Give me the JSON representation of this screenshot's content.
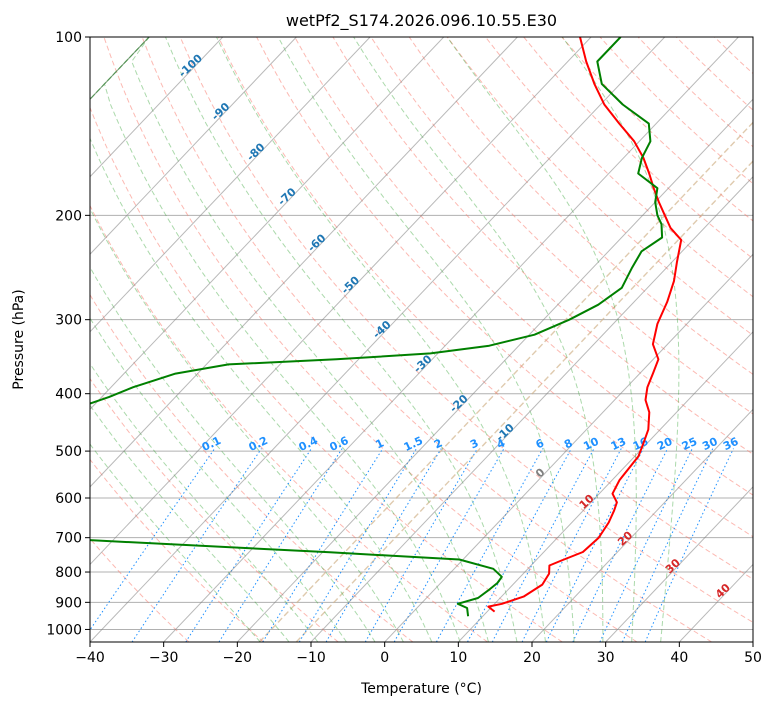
{
  "chart_data": {
    "type": "line",
    "title": "wetPf2_S174.2026.096.10.55.E30",
    "xlabel": "Temperature (°C)",
    "ylabel": "Pressure (hPa)",
    "xlim": [
      -40,
      50
    ],
    "ylim": [
      1050,
      100
    ],
    "y_scale": "log",
    "x_ticks": [
      -40,
      -30,
      -20,
      -10,
      0,
      10,
      20,
      30,
      40,
      50
    ],
    "x_tick_labels": [
      "−40",
      "−30",
      "−20",
      "−10",
      "0",
      "10",
      "20",
      "30",
      "40",
      "50"
    ],
    "y_ticks": [
      1000,
      900,
      800,
      700,
      600,
      500,
      400,
      300,
      200,
      100
    ],
    "y_tick_labels": [
      "1000",
      "900",
      "800",
      "700",
      "600",
      "500",
      "400",
      "300",
      "200",
      "100"
    ],
    "grid": true,
    "colors": {
      "temperature": "#ff0000",
      "dewpoint": "#008000",
      "dry_adiabat": "#fa8072",
      "moist_adiabat": "#2ca02c",
      "mixing_ratio": "#1e90ff",
      "isotherm": "#808080",
      "dgz": "#d2b48c"
    },
    "series": [
      {
        "color": "#ff0000",
        "points": [
          [
            11,
            933
          ],
          [
            9.5,
            915
          ],
          [
            11,
            905
          ],
          [
            13,
            880
          ],
          [
            14,
            840
          ],
          [
            13.5,
            805
          ],
          [
            12.5,
            780
          ],
          [
            13.5,
            765
          ],
          [
            15.3,
            740
          ],
          [
            15.6,
            700
          ],
          [
            15,
            660
          ],
          [
            14.2,
            630
          ],
          [
            13.5,
            610
          ],
          [
            11.8,
            590
          ],
          [
            11,
            560
          ],
          [
            10.5,
            510
          ],
          [
            9.5,
            485
          ],
          [
            8.4,
            460
          ],
          [
            6.3,
            430
          ],
          [
            4.2,
            410
          ],
          [
            2.8,
            390
          ],
          [
            1.8,
            370
          ],
          [
            0.7,
            350
          ],
          [
            -2.0,
            330
          ],
          [
            -4.0,
            305
          ],
          [
            -5.5,
            280
          ],
          [
            -7.3,
            258
          ],
          [
            -9.3,
            240
          ],
          [
            -11.6,
            220
          ],
          [
            -14.6,
            210
          ],
          [
            -17,
            200
          ],
          [
            -19.5,
            190
          ],
          [
            -22,
            180
          ],
          [
            -24.5,
            170
          ],
          [
            -27.3,
            160
          ],
          [
            -30.7,
            150
          ],
          [
            -35,
            140
          ],
          [
            -39.5,
            130
          ],
          [
            -43.5,
            120
          ],
          [
            -47.5,
            110
          ],
          [
            -51.5,
            100
          ]
        ]
      },
      {
        "color": "#008000",
        "points": [
          [
            8,
            950
          ],
          [
            6.8,
            920
          ],
          [
            5.0,
            905
          ],
          [
            7.0,
            885
          ],
          [
            7.4,
            860
          ],
          [
            7.7,
            835
          ],
          [
            7.5,
            815
          ],
          [
            5.3,
            790
          ],
          [
            -0.5,
            762
          ],
          [
            -19,
            741
          ],
          [
            -60,
            700
          ],
          [
            -69,
            660
          ],
          [
            -72,
            620
          ],
          [
            -75,
            600
          ],
          [
            -75.5,
            560
          ],
          [
            -75,
            520
          ],
          [
            -78,
            510
          ],
          [
            -79,
            480
          ],
          [
            -75,
            455
          ],
          [
            -73,
            430
          ],
          [
            -69,
            405
          ],
          [
            -67,
            390
          ],
          [
            -63,
            370
          ],
          [
            -57,
            357
          ],
          [
            -43,
            350
          ],
          [
            -31,
            342
          ],
          [
            -24,
            332
          ],
          [
            -19.3,
            318
          ],
          [
            -16.5,
            300
          ],
          [
            -14.5,
            283
          ],
          [
            -13.5,
            265
          ],
          [
            -14.7,
            245
          ],
          [
            -15.5,
            230
          ],
          [
            -14.5,
            218
          ],
          [
            -16.3,
            207
          ],
          [
            -18,
            200
          ],
          [
            -20,
            190
          ],
          [
            -21.5,
            180
          ],
          [
            -26,
            170
          ],
          [
            -27.5,
            160
          ],
          [
            -28.5,
            150
          ],
          [
            -31,
            140
          ],
          [
            -37,
            130
          ],
          [
            -42.5,
            120
          ],
          [
            -46,
            110
          ],
          [
            -46,
            100
          ]
        ]
      }
    ],
    "dry_adiabat_labels": [
      "10",
      "20",
      "30",
      "40"
    ],
    "moist_adiabat_labels": [
      "-100",
      "-90",
      "-80",
      "-70",
      "-60",
      "-50",
      "-40",
      "-30",
      "-20",
      "-10",
      "0"
    ],
    "mixing_ratio_labels": [
      "0.1",
      "0.2",
      "0.4",
      "0.6",
      "1",
      "1.5",
      "2",
      "3",
      "4",
      "6",
      "8",
      "10",
      "13",
      "16",
      "20",
      "25",
      "30",
      "36"
    ]
  }
}
